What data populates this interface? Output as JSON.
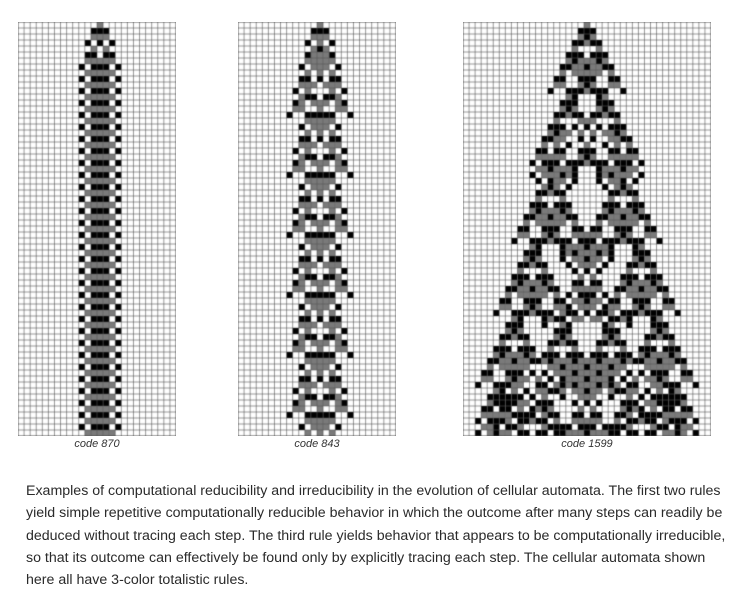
{
  "figure": {
    "panels": [
      {
        "code": 870,
        "label": "code 870"
      },
      {
        "code": 843,
        "label": "code 843"
      },
      {
        "code": 1599,
        "label": "code 1599"
      }
    ],
    "rule_family": "3-color totalistic",
    "colors": {
      "0": "#ffffff",
      "1": "#7a7a7a",
      "2": "#000000",
      "grid": "#555555"
    }
  },
  "caption": "Examples of computational reducibility and irreducibility in the evolution of cellular automata. The first two rules yield simple repetitive computationally reducible behavior in which the outcome after many steps can readily be deduced without tracing each step. The third rule yields behavior that appears to be computationally irreducible, so that its outcome can effectively be found only by explicitly tracing each step. The cellular automata shown here all have 3-color totalistic rules."
}
